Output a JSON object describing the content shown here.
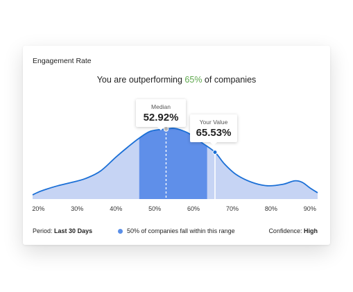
{
  "card": {
    "title": "Engagement Rate",
    "headline_prefix": "You are outperforming ",
    "headline_percent": "65%",
    "headline_suffix": " of companies"
  },
  "tooltips": {
    "median": {
      "label": "Median",
      "value": "52.92%"
    },
    "your_value": {
      "label": "Your Value",
      "value": "65.53%"
    }
  },
  "footer": {
    "period_label": "Period:",
    "period_value": "Last 30 Days",
    "legend_text": "50% of companies fall within this range",
    "confidence_label": "Confidence:",
    "confidence_value": "High"
  },
  "colors": {
    "area_light": "#c6d4f4",
    "area_dark": "#5f8fe9",
    "curve": "#1a6fd6",
    "accent_green": "#5ea84d"
  },
  "chart_data": {
    "type": "area",
    "x_ticks": [
      "20%",
      "30%",
      "40%",
      "50%",
      "60%",
      "70%",
      "80%",
      "90%"
    ],
    "xlim": [
      18.5,
      92
    ],
    "x": [
      18.5,
      20,
      22,
      25,
      28,
      32,
      36,
      40,
      43,
      46,
      49,
      52.9,
      55,
      57,
      59,
      62,
      65.5,
      68,
      71,
      75,
      79,
      83,
      86,
      88,
      90,
      92
    ],
    "y": [
      0.06,
      0.1,
      0.14,
      0.19,
      0.23,
      0.29,
      0.4,
      0.6,
      0.74,
      0.87,
      0.97,
      1.0,
      1.01,
      0.98,
      0.93,
      0.81,
      0.67,
      0.5,
      0.35,
      0.24,
      0.19,
      0.21,
      0.26,
      0.24,
      0.16,
      0.09
    ],
    "shaded_range": [
      46,
      63.5
    ],
    "median": 52.92,
    "your_value": 65.53
  }
}
